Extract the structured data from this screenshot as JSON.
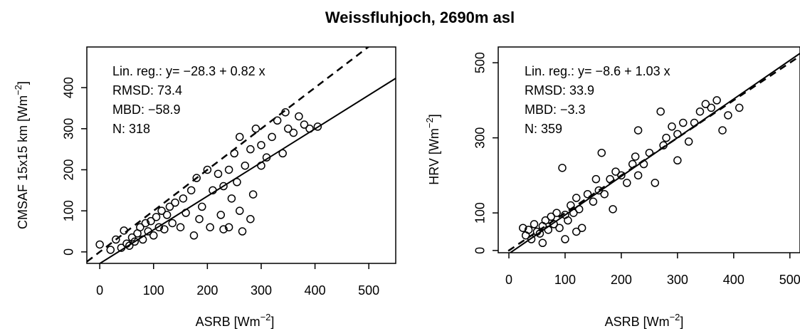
{
  "title": "Weissfluhjoch, 2690m asl",
  "chart_data": [
    {
      "type": "scatter",
      "x_label": {
        "text": "ASRB [Wm",
        "sup": "−2",
        "end": "]"
      },
      "y_label": {
        "text": "CMSAF 15x15 km [Wm",
        "sup": "−2",
        "end": "]"
      },
      "annotations": [
        "Lin. reg.: y= −28.3 + 0.82 x",
        "RMSD: 73.4",
        "MBD: −58.9",
        "N: 318"
      ],
      "regression": {
        "intercept": -28.3,
        "slope": 0.82
      },
      "identity_line": true,
      "xlim": [
        -24,
        550
      ],
      "ylim": [
        -28,
        499
      ],
      "xticks": [
        0,
        100,
        200,
        300,
        400,
        500
      ],
      "yticks": [
        0,
        100,
        200,
        300,
        400
      ],
      "color": "#000000",
      "x": [
        0,
        20,
        30,
        40,
        45,
        50,
        55,
        60,
        65,
        70,
        75,
        80,
        85,
        90,
        95,
        100,
        105,
        110,
        115,
        120,
        125,
        130,
        135,
        140,
        150,
        155,
        160,
        170,
        175,
        180,
        185,
        190,
        200,
        205,
        210,
        220,
        225,
        230,
        240,
        245,
        250,
        255,
        260,
        265,
        270,
        280,
        285,
        290,
        300,
        310,
        320,
        330,
        340,
        345,
        350,
        360,
        370,
        380,
        390,
        405,
        240,
        260,
        280,
        300,
        230
      ],
      "y": [
        18,
        5,
        30,
        10,
        52,
        20,
        15,
        35,
        25,
        45,
        60,
        30,
        70,
        50,
        75,
        40,
        85,
        60,
        100,
        55,
        90,
        110,
        70,
        120,
        60,
        130,
        95,
        150,
        40,
        180,
        80,
        110,
        200,
        60,
        150,
        190,
        90,
        55,
        200,
        130,
        240,
        170,
        280,
        50,
        210,
        250,
        140,
        300,
        260,
        230,
        280,
        320,
        240,
        340,
        300,
        290,
        330,
        310,
        300,
        305,
        60,
        100,
        80,
        210,
        160
      ]
    },
    {
      "type": "scatter",
      "x_label": {
        "text": "ASRB [Wm",
        "sup": "−2",
        "end": "]"
      },
      "y_label": {
        "text": "HRV [Wm",
        "sup": "−2",
        "end": "]"
      },
      "annotations": [
        "Lin. reg.: y= −8.6 + 1.03 x",
        "RMSD: 33.9",
        "MBD: −3.3",
        "N: 359"
      ],
      "regression": {
        "intercept": -8.6,
        "slope": 1.03
      },
      "identity_line": true,
      "xlim": [
        -19,
        518
      ],
      "ylim": [
        -6,
        542
      ],
      "xticks": [
        0,
        100,
        200,
        300,
        400,
        500
      ],
      "yticks": [
        0,
        100,
        300,
        500
      ],
      "color": "#000000",
      "x": [
        25,
        30,
        35,
        40,
        45,
        50,
        55,
        60,
        65,
        70,
        75,
        80,
        85,
        90,
        95,
        100,
        105,
        110,
        115,
        120,
        125,
        130,
        140,
        150,
        155,
        160,
        165,
        170,
        180,
        185,
        190,
        200,
        210,
        220,
        225,
        230,
        240,
        250,
        260,
        270,
        275,
        280,
        290,
        300,
        310,
        320,
        330,
        340,
        350,
        360,
        370,
        380,
        390,
        410,
        60,
        100,
        120,
        300,
        230
      ],
      "y": [
        60,
        40,
        55,
        30,
        70,
        50,
        45,
        65,
        80,
        55,
        90,
        70,
        100,
        60,
        220,
        95,
        80,
        120,
        100,
        140,
        110,
        60,
        150,
        130,
        190,
        160,
        260,
        150,
        190,
        110,
        210,
        200,
        180,
        230,
        250,
        200,
        230,
        260,
        180,
        370,
        280,
        300,
        330,
        310,
        340,
        290,
        340,
        370,
        390,
        380,
        400,
        320,
        360,
        380,
        20,
        30,
        50,
        240,
        320
      ]
    }
  ]
}
